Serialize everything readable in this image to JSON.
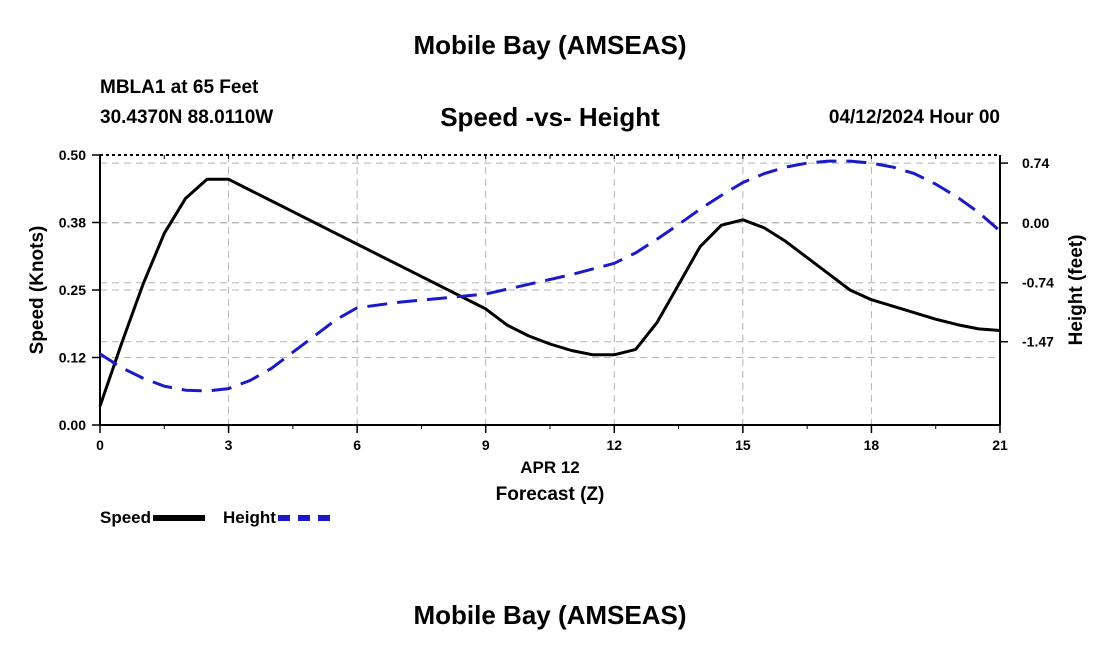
{
  "header": {
    "title": "Mobile Bay (AMSEAS)",
    "station": "MBLA1 at 65 Feet",
    "coords": "30.4370N  88.0110W",
    "subtitle": "Speed -vs- Height",
    "datetime": "04/12/2024 Hour 00"
  },
  "footer": {
    "title": "Mobile Bay (AMSEAS)"
  },
  "legend": {
    "speed_label": "Speed",
    "height_label": "Height"
  },
  "chart_data": {
    "type": "line",
    "xlabel": "Forecast (Z)",
    "x_date_label": "APR 12",
    "ylabel_left": "Speed (Knots)",
    "ylabel_right": "Height (feet)",
    "xlim": [
      0,
      21
    ],
    "ylim_left": [
      0,
      0.5
    ],
    "ylim_right": [
      -2.5,
      0.84
    ],
    "x_ticks": [
      0,
      3,
      6,
      9,
      12,
      15,
      18,
      21
    ],
    "x_tick_labels": [
      "0",
      "3",
      "6",
      "9",
      "12",
      "15",
      "18",
      "21"
    ],
    "y_left_ticks": [
      0.0,
      0.125,
      0.25,
      0.375,
      0.5
    ],
    "y_left_tick_labels": [
      "0.00",
      "0.12",
      "0.25",
      "0.38",
      "0.50"
    ],
    "y_right_ticks": [
      0.74,
      0.0,
      -0.74,
      -1.47
    ],
    "y_right_tick_labels": [
      "0.74",
      "0.00",
      "-0.74",
      "-1.47"
    ],
    "grid": true,
    "colors": {
      "speed": "#000000",
      "height": "#1a1ac8",
      "grid": "#b4b4b4"
    },
    "series": [
      {
        "name": "Speed",
        "axis": "left",
        "style": "solid",
        "x": [
          0,
          0.5,
          1,
          1.5,
          2,
          2.5,
          3,
          3.5,
          4,
          4.5,
          5,
          5.5,
          6,
          7,
          8,
          9,
          9.5,
          10,
          10.5,
          11,
          11.5,
          12,
          12.5,
          13,
          13.5,
          14,
          14.5,
          15,
          15.5,
          16,
          16.5,
          17,
          17.5,
          18,
          18.5,
          19,
          19.5,
          20,
          20.5,
          21
        ],
        "values": [
          0.035,
          0.15,
          0.26,
          0.355,
          0.42,
          0.455,
          0.455,
          0.435,
          0.415,
          0.395,
          0.375,
          0.355,
          0.335,
          0.295,
          0.255,
          0.215,
          0.185,
          0.165,
          0.15,
          0.138,
          0.13,
          0.13,
          0.14,
          0.19,
          0.26,
          0.33,
          0.37,
          0.38,
          0.365,
          0.34,
          0.31,
          0.28,
          0.25,
          0.232,
          0.22,
          0.208,
          0.196,
          0.186,
          0.178,
          0.175
        ]
      },
      {
        "name": "Height",
        "axis": "right",
        "style": "dashed",
        "x": [
          0,
          0.5,
          1,
          1.5,
          2,
          2.5,
          3,
          3.5,
          4,
          4.5,
          5,
          5.5,
          6,
          7,
          8,
          9,
          10,
          11,
          12,
          12.5,
          13,
          13.5,
          14,
          14.5,
          15,
          15.5,
          16,
          16.5,
          17,
          17.5,
          18,
          18.5,
          19,
          19.5,
          20,
          20.5,
          21
        ],
        "values": [
          -1.62,
          -1.79,
          -1.92,
          -2.02,
          -2.07,
          -2.08,
          -2.05,
          -1.95,
          -1.8,
          -1.6,
          -1.4,
          -1.2,
          -1.05,
          -0.98,
          -0.93,
          -0.88,
          -0.76,
          -0.64,
          -0.5,
          -0.37,
          -0.2,
          -0.02,
          0.17,
          0.34,
          0.5,
          0.61,
          0.69,
          0.74,
          0.765,
          0.765,
          0.74,
          0.69,
          0.61,
          0.48,
          0.32,
          0.13,
          -0.1
        ]
      }
    ]
  }
}
